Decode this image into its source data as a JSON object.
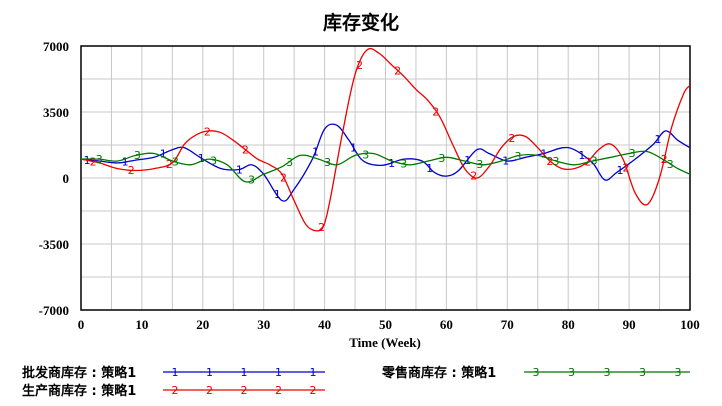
{
  "chart_data": {
    "type": "line",
    "title": "库存变化",
    "xlabel": "Time (Week)",
    "ylabel": "",
    "xlim": [
      0,
      100
    ],
    "ylim": [
      -7000,
      7000
    ],
    "x_ticks": [
      "0",
      "10",
      "20",
      "30",
      "40",
      "50",
      "60",
      "70",
      "80",
      "90",
      "100"
    ],
    "y_ticks": [
      "7000",
      "3500",
      "0",
      "-3500",
      "-7000"
    ],
    "grid": true,
    "legend_placement": "bottom",
    "series": [
      {
        "name": "批发商库存 : 策略1",
        "marker": "1",
        "color": "#0000cc",
        "x": [
          0,
          3,
          6,
          9,
          12,
          15,
          17,
          20,
          23,
          26,
          28,
          30,
          33,
          35,
          38,
          40,
          42,
          44,
          46,
          48,
          50,
          53,
          56,
          58,
          60,
          62,
          65,
          67,
          70,
          73,
          76,
          79,
          81,
          84,
          86,
          88,
          91,
          94,
          96,
          98,
          100
        ],
        "y": [
          1000,
          900,
          800,
          950,
          1100,
          1500,
          1600,
          1000,
          500,
          450,
          700,
          200,
          -1200,
          -600,
          1000,
          2600,
          2800,
          2000,
          1000,
          700,
          700,
          1000,
          900,
          300,
          100,
          400,
          1500,
          1300,
          900,
          1100,
          1300,
          1600,
          1500,
          800,
          -100,
          300,
          1000,
          1800,
          2500,
          2000,
          1600
        ]
      },
      {
        "name": "生产商库存 : 策略1",
        "marker": "2",
        "color": "#ee0000",
        "x": [
          0,
          3,
          6,
          9,
          12,
          15,
          17,
          19,
          21,
          23,
          25,
          27,
          29,
          31,
          33,
          35,
          37,
          39,
          40,
          41,
          43,
          45,
          47,
          49,
          51,
          53,
          55,
          57,
          59,
          61,
          63,
          65,
          67,
          69,
          71,
          73,
          75,
          77,
          79,
          81,
          83,
          85,
          87,
          89,
          91,
          93,
          95,
          97,
          99,
          100
        ],
        "y": [
          1000,
          800,
          500,
          400,
          500,
          800,
          1800,
          2300,
          2500,
          2400,
          2000,
          1500,
          1000,
          700,
          200,
          -1200,
          -2500,
          -2800,
          -2400,
          -1000,
          2500,
          5500,
          6800,
          6600,
          6000,
          5400,
          4700,
          4100,
          3200,
          1800,
          500,
          0,
          600,
          1600,
          2200,
          2200,
          1600,
          900,
          500,
          500,
          800,
          1500,
          1800,
          1000,
          -800,
          -1400,
          0,
          2700,
          4500,
          4900
        ]
      },
      {
        "name": "零售商库存 : 策略1",
        "marker": "3",
        "color": "#007700",
        "x": [
          0,
          3,
          6,
          9,
          12,
          15,
          18,
          21,
          24,
          27,
          30,
          33,
          36,
          39,
          42,
          45,
          48,
          51,
          54,
          57,
          60,
          63,
          66,
          69,
          72,
          75,
          78,
          81,
          84,
          87,
          90,
          93,
          96,
          98,
          100
        ],
        "y": [
          1000,
          1000,
          900,
          1200,
          1300,
          900,
          700,
          1000,
          700,
          -200,
          200,
          600,
          1200,
          1000,
          700,
          1200,
          1300,
          900,
          700,
          900,
          1100,
          900,
          700,
          900,
          1200,
          1200,
          900,
          700,
          900,
          1100,
          1300,
          1400,
          900,
          500,
          200
        ]
      }
    ]
  }
}
